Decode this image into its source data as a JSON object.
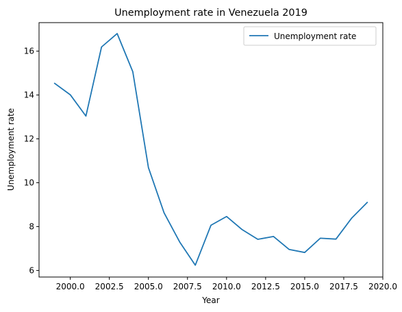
{
  "chart_data": {
    "type": "line",
    "title": "Unemployment rate in Venezuela 2019",
    "xlabel": "Year",
    "ylabel": "Unemployment rate",
    "xlim": [
      1998.0,
      2020.0
    ],
    "ylim": [
      5.7,
      17.3
    ],
    "xticks": [
      2000.0,
      2002.5,
      2005.0,
      2007.5,
      2010.0,
      2012.5,
      2015.0,
      2017.5,
      2020.0
    ],
    "xtick_labels": [
      "2000.0",
      "2002.5",
      "2005.0",
      "2007.5",
      "2010.0",
      "2012.5",
      "2015.0",
      "2017.5",
      "2020.0"
    ],
    "yticks": [
      6,
      8,
      10,
      12,
      14,
      16
    ],
    "ytick_labels": [
      "6",
      "8",
      "10",
      "12",
      "14",
      "16"
    ],
    "grid": false,
    "legend_position": "top-right",
    "series": [
      {
        "name": "Unemployment rate",
        "color": "#1f77b4",
        "x": [
          1999,
          2000,
          2001,
          2002,
          2003,
          2004,
          2005,
          2006,
          2007,
          2008,
          2009,
          2010,
          2011,
          2012,
          2013,
          2014,
          2015,
          2016,
          2017,
          2018,
          2019
        ],
        "values": [
          14.53,
          14.01,
          13.04,
          16.19,
          16.8,
          15.06,
          10.69,
          8.63,
          7.3,
          6.24,
          8.06,
          8.46,
          7.86,
          7.42,
          7.55,
          6.96,
          6.82,
          7.47,
          7.43,
          8.38,
          9.1
        ]
      }
    ]
  }
}
